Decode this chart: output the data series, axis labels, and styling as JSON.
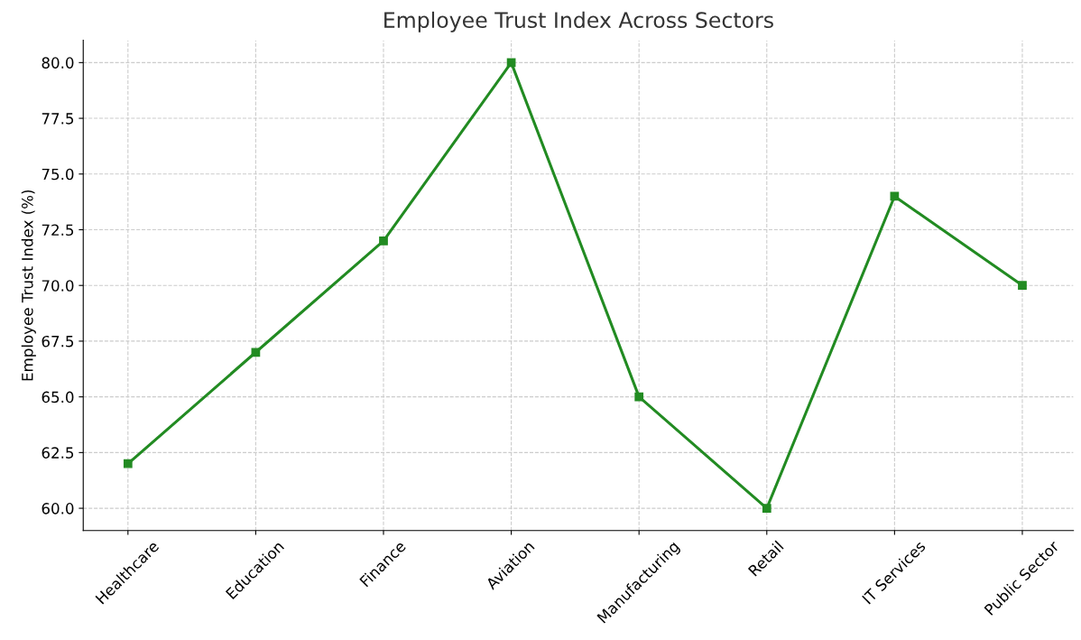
{
  "chart_data": {
    "type": "line",
    "title": "Employee Trust Index Across Sectors",
    "ylabel": "Employee Trust Index (%)",
    "categories": [
      "Healthcare",
      "Education",
      "Finance",
      "Aviation",
      "Manufacturing",
      "Retail",
      "IT Services",
      "Public Sector"
    ],
    "series": [
      {
        "color": "#228b22",
        "values": [
          62,
          67,
          72,
          80,
          65,
          60,
          74,
          70
        ]
      }
    ],
    "ylim": [
      59,
      81
    ],
    "yticks": [
      {
        "value": 60,
        "label": "60.0"
      },
      {
        "value": 62.5,
        "label": "62.5"
      },
      {
        "value": 65,
        "label": "65.0"
      },
      {
        "value": 67.5,
        "label": "67.5"
      },
      {
        "value": 70,
        "label": "70.0"
      },
      {
        "value": 72.5,
        "label": "72.5"
      },
      {
        "value": 75,
        "label": "75.0"
      },
      {
        "value": 77.5,
        "label": "77.5"
      },
      {
        "value": 80,
        "label": "80.0"
      }
    ],
    "grid": true,
    "marker": "square",
    "line_style": "solid"
  }
}
